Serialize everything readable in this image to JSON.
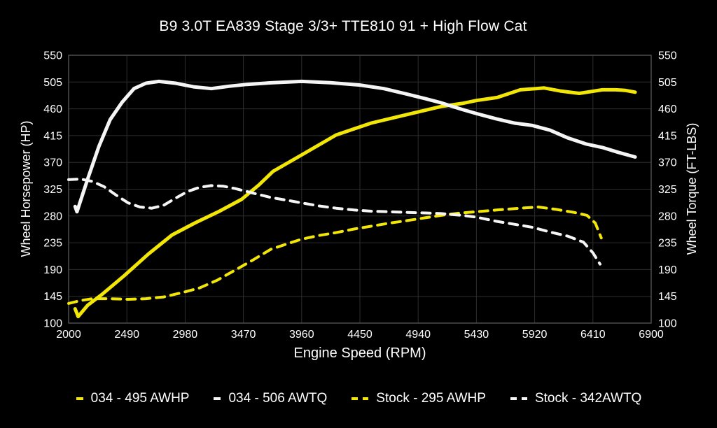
{
  "page": {
    "background": "#000000",
    "text_color": "#ffffff",
    "grid_color": "#2e2e2e",
    "border_color": "#4d4d4d"
  },
  "chart_data": {
    "type": "line",
    "title": "B9 3.0T EA839 Stage 3/3+ TTE810 91 + High Flow Cat",
    "xlabel": "Engine Speed (RPM)",
    "ylabel_left": "Wheel Horsepower (HP)",
    "ylabel_right": "Wheel Torque (FT-LBS)",
    "xlim": [
      2000,
      6900
    ],
    "ylim": [
      100,
      550
    ],
    "x_ticks": [
      2000,
      2490,
      2980,
      3470,
      3960,
      4450,
      4940,
      5430,
      5920,
      6410,
      6900
    ],
    "y_ticks": [
      100,
      145,
      190,
      235,
      280,
      325,
      370,
      415,
      460,
      505,
      550
    ],
    "grid": true,
    "legend_position": "bottom",
    "series": [
      {
        "name": "034 - 495 AWHP",
        "key": "tuned-awhp",
        "color": "#f2e606",
        "dash": "solid",
        "width": 5,
        "points": [
          [
            2055,
            124
          ],
          [
            2080,
            111
          ],
          [
            2160,
            130
          ],
          [
            2280,
            148
          ],
          [
            2470,
            180
          ],
          [
            2670,
            216
          ],
          [
            2870,
            248
          ],
          [
            3060,
            268
          ],
          [
            3260,
            287
          ],
          [
            3455,
            308
          ],
          [
            3600,
            332
          ],
          [
            3720,
            355
          ],
          [
            3955,
            382
          ],
          [
            4250,
            416
          ],
          [
            4545,
            436
          ],
          [
            4840,
            450
          ],
          [
            5135,
            464
          ],
          [
            5310,
            469
          ],
          [
            5430,
            474
          ],
          [
            5605,
            479
          ],
          [
            5800,
            492
          ],
          [
            6000,
            495
          ],
          [
            6135,
            490
          ],
          [
            6295,
            486
          ],
          [
            6490,
            492
          ],
          [
            6600,
            492
          ],
          [
            6680,
            491
          ],
          [
            6765,
            488
          ]
        ]
      },
      {
        "name": "034 - 506 AWTQ",
        "key": "tuned-awtq",
        "color": "#f5f5f5",
        "dash": "solid",
        "width": 5,
        "points": [
          [
            2055,
            296
          ],
          [
            2070,
            287
          ],
          [
            2160,
            342
          ],
          [
            2255,
            397
          ],
          [
            2350,
            442
          ],
          [
            2450,
            471
          ],
          [
            2550,
            494
          ],
          [
            2650,
            503
          ],
          [
            2760,
            506
          ],
          [
            2900,
            503
          ],
          [
            3050,
            497
          ],
          [
            3200,
            494
          ],
          [
            3350,
            498
          ],
          [
            3500,
            501
          ],
          [
            3720,
            504
          ],
          [
            3960,
            506
          ],
          [
            4200,
            504
          ],
          [
            4450,
            500
          ],
          [
            4650,
            494
          ],
          [
            4840,
            485
          ],
          [
            5000,
            477
          ],
          [
            5135,
            470
          ],
          [
            5310,
            459
          ],
          [
            5430,
            452
          ],
          [
            5600,
            443
          ],
          [
            5750,
            436
          ],
          [
            5900,
            432
          ],
          [
            6050,
            424
          ],
          [
            6200,
            411
          ],
          [
            6350,
            401
          ],
          [
            6490,
            395
          ],
          [
            6620,
            387
          ],
          [
            6765,
            379
          ]
        ]
      },
      {
        "name": "Stock - 295 AWHP",
        "key": "stock-awhp",
        "color": "#f2e606",
        "dash": "dashed",
        "width": 4,
        "points": [
          [
            2000,
            133
          ],
          [
            2100,
            138
          ],
          [
            2200,
            141
          ],
          [
            2350,
            141
          ],
          [
            2500,
            140
          ],
          [
            2650,
            141
          ],
          [
            2800,
            144
          ],
          [
            2950,
            151
          ],
          [
            3100,
            159
          ],
          [
            3250,
            172
          ],
          [
            3400,
            189
          ],
          [
            3550,
            206
          ],
          [
            3700,
            224
          ],
          [
            3850,
            234
          ],
          [
            3960,
            241
          ],
          [
            4100,
            247
          ],
          [
            4250,
            252
          ],
          [
            4400,
            258
          ],
          [
            4550,
            263
          ],
          [
            4700,
            268
          ],
          [
            4840,
            272
          ],
          [
            5000,
            277
          ],
          [
            5135,
            281
          ],
          [
            5300,
            285
          ],
          [
            5430,
            287
          ],
          [
            5600,
            290
          ],
          [
            5800,
            293
          ],
          [
            5950,
            295
          ],
          [
            6100,
            291
          ],
          [
            6250,
            286
          ],
          [
            6360,
            281
          ],
          [
            6430,
            268
          ],
          [
            6480,
            243
          ]
        ]
      },
      {
        "name": "Stock - 342AWTQ",
        "key": "stock-awtq",
        "color": "#f5f5f5",
        "dash": "dashed",
        "width": 4,
        "points": [
          [
            2000,
            341
          ],
          [
            2100,
            342
          ],
          [
            2200,
            338
          ],
          [
            2300,
            329
          ],
          [
            2400,
            315
          ],
          [
            2500,
            302
          ],
          [
            2600,
            295
          ],
          [
            2700,
            293
          ],
          [
            2800,
            298
          ],
          [
            2900,
            310
          ],
          [
            3000,
            321
          ],
          [
            3100,
            328
          ],
          [
            3200,
            331
          ],
          [
            3300,
            330
          ],
          [
            3400,
            326
          ],
          [
            3500,
            321
          ],
          [
            3600,
            316
          ],
          [
            3700,
            311
          ],
          [
            3850,
            306
          ],
          [
            3960,
            302
          ],
          [
            4100,
            297
          ],
          [
            4250,
            293
          ],
          [
            4400,
            290
          ],
          [
            4550,
            288
          ],
          [
            4700,
            287
          ],
          [
            4840,
            286
          ],
          [
            5000,
            285
          ],
          [
            5135,
            284
          ],
          [
            5310,
            281
          ],
          [
            5430,
            278
          ],
          [
            5600,
            271
          ],
          [
            5750,
            266
          ],
          [
            5900,
            261
          ],
          [
            6050,
            253
          ],
          [
            6200,
            246
          ],
          [
            6330,
            236
          ],
          [
            6410,
            218
          ],
          [
            6470,
            199
          ]
        ]
      }
    ]
  }
}
